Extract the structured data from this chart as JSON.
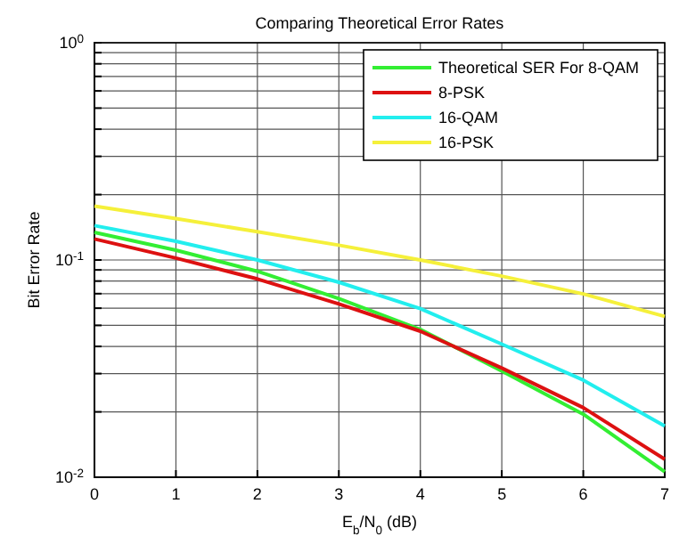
{
  "chart_data": {
    "type": "line",
    "title": "Comparing Theoretical Error Rates",
    "xlabel": "E$_{b}$/N$_{0}$ (dB)",
    "ylabel": "Bit Error Rate",
    "x": [
      0,
      1,
      2,
      3,
      4,
      5,
      6,
      7
    ],
    "series": [
      {
        "name": "Theoretical SER For 8-QAM",
        "color": "#33ee33",
        "values": [
          0.134,
          0.111,
          0.0887,
          0.0664,
          0.0479,
          0.0308,
          0.0195,
          0.0106
        ]
      },
      {
        "name": "8-PSK",
        "color": "#dd1111",
        "values": [
          0.125,
          0.102,
          0.0818,
          0.0628,
          0.047,
          0.0318,
          0.0209,
          0.0121
        ]
      },
      {
        "name": "16-QAM",
        "color": "#22eeee",
        "values": [
          0.144,
          0.122,
          0.1,
          0.079,
          0.0597,
          0.041,
          0.028,
          0.0172
        ]
      },
      {
        "name": "16-PSK",
        "color": "#f5f03a",
        "values": [
          0.177,
          0.155,
          0.135,
          0.117,
          0.1,
          0.0843,
          0.0698,
          0.055
        ]
      }
    ],
    "xlim": [
      0,
      7
    ],
    "xticks": [
      0,
      1,
      2,
      3,
      4,
      5,
      6,
      7
    ],
    "ylim": [
      0.01,
      1
    ],
    "log": "y",
    "yticks": [
      {
        "value": 0.01,
        "label": "10$^{-2}$"
      },
      {
        "value": 0.02,
        "label": null
      },
      {
        "value": 0.03,
        "label": null
      },
      {
        "value": 0.04,
        "label": null
      },
      {
        "value": 0.05,
        "label": null
      },
      {
        "value": 0.06,
        "label": null
      },
      {
        "value": 0.07,
        "label": null
      },
      {
        "value": 0.08,
        "label": null
      },
      {
        "value": 0.09,
        "label": null
      },
      {
        "value": 0.1,
        "label": "10$^{-1}$"
      },
      {
        "value": 0.2,
        "label": null
      },
      {
        "value": 0.3,
        "label": null
      },
      {
        "value": 0.4,
        "label": null
      },
      {
        "value": 0.5,
        "label": null
      },
      {
        "value": 0.6,
        "label": null
      },
      {
        "value": 0.7,
        "label": null
      },
      {
        "value": 0.8,
        "label": null
      },
      {
        "value": 0.9,
        "label": null
      },
      {
        "value": 1,
        "label": "10$^{0}$"
      }
    ],
    "grid": true,
    "legend": "top right",
    "marker": "none",
    "line_style": "solid"
  }
}
